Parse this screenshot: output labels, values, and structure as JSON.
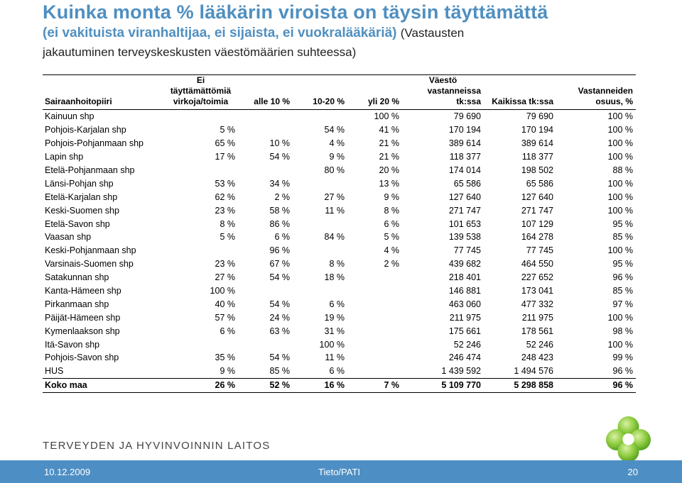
{
  "title": "Kuinka monta % lääkärin viroista on täysin täyttämättä",
  "subtitle_bold": "(ei vakituista viranhaltijaa, ei sijaista, ei vuokralääkäriä)",
  "subtitle_plain": "(Vastausten",
  "subtitle_line2": "jakautuminen terveyskeskusten väestömäärien suhteessa)",
  "table": {
    "headers": {
      "district": "Sairaanhoitopiiri",
      "unfilled": [
        "Ei täyttämättömiä",
        "virkoja/toimia"
      ],
      "under10": "alle 10 %",
      "r10_20": "10-20 %",
      "over20": "yli 20 %",
      "population": [
        "Väestö",
        "vastanneissa",
        "tk:ssa"
      ],
      "all": "Kaikissa tk:ssa",
      "share": [
        "Vastanneiden",
        "osuus, %"
      ]
    },
    "rows": [
      {
        "district": "Kainuun shp",
        "none": "",
        "lt10": "",
        "r10_20": "",
        "gt20": "100 %",
        "pop": "79 690",
        "all": "79 690",
        "share": "100 %"
      },
      {
        "district": "Pohjois-Karjalan shp",
        "none": "5 %",
        "lt10": "",
        "r10_20": "54 %",
        "gt20": "41 %",
        "pop": "170 194",
        "all": "170 194",
        "share": "100 %"
      },
      {
        "district": "Pohjois-Pohjanmaan shp",
        "none": "65 %",
        "lt10": "10 %",
        "r10_20": "4 %",
        "gt20": "21 %",
        "pop": "389 614",
        "all": "389 614",
        "share": "100 %"
      },
      {
        "district": "Lapin shp",
        "none": "17 %",
        "lt10": "54 %",
        "r10_20": "9 %",
        "gt20": "21 %",
        "pop": "118 377",
        "all": "118 377",
        "share": "100 %"
      },
      {
        "district": "Etelä-Pohjanmaan shp",
        "none": "",
        "lt10": "",
        "r10_20": "80 %",
        "gt20": "20 %",
        "pop": "174 014",
        "all": "198 502",
        "share": "88 %"
      },
      {
        "district": "Länsi-Pohjan shp",
        "none": "53 %",
        "lt10": "34 %",
        "r10_20": "",
        "gt20": "13 %",
        "pop": "65 586",
        "all": "65 586",
        "share": "100 %"
      },
      {
        "district": "Etelä-Karjalan shp",
        "none": "62 %",
        "lt10": "2 %",
        "r10_20": "27 %",
        "gt20": "9 %",
        "pop": "127 640",
        "all": "127 640",
        "share": "100 %"
      },
      {
        "district": "Keski-Suomen shp",
        "none": "23 %",
        "lt10": "58 %",
        "r10_20": "11 %",
        "gt20": "8 %",
        "pop": "271 747",
        "all": "271 747",
        "share": "100 %"
      },
      {
        "district": "Etelä-Savon shp",
        "none": "8 %",
        "lt10": "86 %",
        "r10_20": "",
        "gt20": "6 %",
        "pop": "101 653",
        "all": "107 129",
        "share": "95 %"
      },
      {
        "district": "Vaasan shp",
        "none": "5 %",
        "lt10": "6 %",
        "r10_20": "84 %",
        "gt20": "5 %",
        "pop": "139 538",
        "all": "164 278",
        "share": "85 %"
      },
      {
        "district": "Keski-Pohjanmaan shp",
        "none": "",
        "lt10": "96 %",
        "r10_20": "",
        "gt20": "4 %",
        "pop": "77 745",
        "all": "77 745",
        "share": "100 %"
      },
      {
        "district": "Varsinais-Suomen shp",
        "none": "23 %",
        "lt10": "67 %",
        "r10_20": "8 %",
        "gt20": "2 %",
        "pop": "439 682",
        "all": "464 550",
        "share": "95 %"
      },
      {
        "district": "Satakunnan shp",
        "none": "27 %",
        "lt10": "54 %",
        "r10_20": "18 %",
        "gt20": "",
        "pop": "218 401",
        "all": "227 652",
        "share": "96 %"
      },
      {
        "district": "Kanta-Hämeen shp",
        "none": "100 %",
        "lt10": "",
        "r10_20": "",
        "gt20": "",
        "pop": "146 881",
        "all": "173 041",
        "share": "85 %"
      },
      {
        "district": "Pirkanmaan shp",
        "none": "40 %",
        "lt10": "54 %",
        "r10_20": "6 %",
        "gt20": "",
        "pop": "463 060",
        "all": "477 332",
        "share": "97 %"
      },
      {
        "district": "Päijät-Hämeen shp",
        "none": "57 %",
        "lt10": "24 %",
        "r10_20": "19 %",
        "gt20": "",
        "pop": "211 975",
        "all": "211 975",
        "share": "100 %"
      },
      {
        "district": "Kymenlaakson shp",
        "none": "6 %",
        "lt10": "63 %",
        "r10_20": "31 %",
        "gt20": "",
        "pop": "175 661",
        "all": "178 561",
        "share": "98 %"
      },
      {
        "district": "Itä-Savon shp",
        "none": "",
        "lt10": "",
        "r10_20": "100 %",
        "gt20": "",
        "pop": "52 246",
        "all": "52 246",
        "share": "100 %"
      },
      {
        "district": "Pohjois-Savon shp",
        "none": "35 %",
        "lt10": "54 %",
        "r10_20": "11 %",
        "gt20": "",
        "pop": "246 474",
        "all": "248 423",
        "share": "99 %"
      },
      {
        "district": "HUS",
        "none": "9 %",
        "lt10": "85 %",
        "r10_20": "6 %",
        "gt20": "",
        "pop": "1 439 592",
        "all": "1 494 576",
        "share": "96 %"
      }
    ],
    "total": {
      "district": "Koko maa",
      "none": "26 %",
      "lt10": "52 %",
      "r10_20": "16 %",
      "gt20": "7 %",
      "pop": "5 109 770",
      "all": "5 298 858",
      "share": "96 %"
    }
  },
  "logo_text": "TERVEYDEN JA HYVINVOINNIN LAITOS",
  "logo_icon": "clover-leaf-icon",
  "footer": {
    "date": "10.12.2009",
    "org": "Tieto/PATI",
    "page": "20",
    "bar_color": "#4d8fc4"
  },
  "accent_color": "#4f8fc0"
}
